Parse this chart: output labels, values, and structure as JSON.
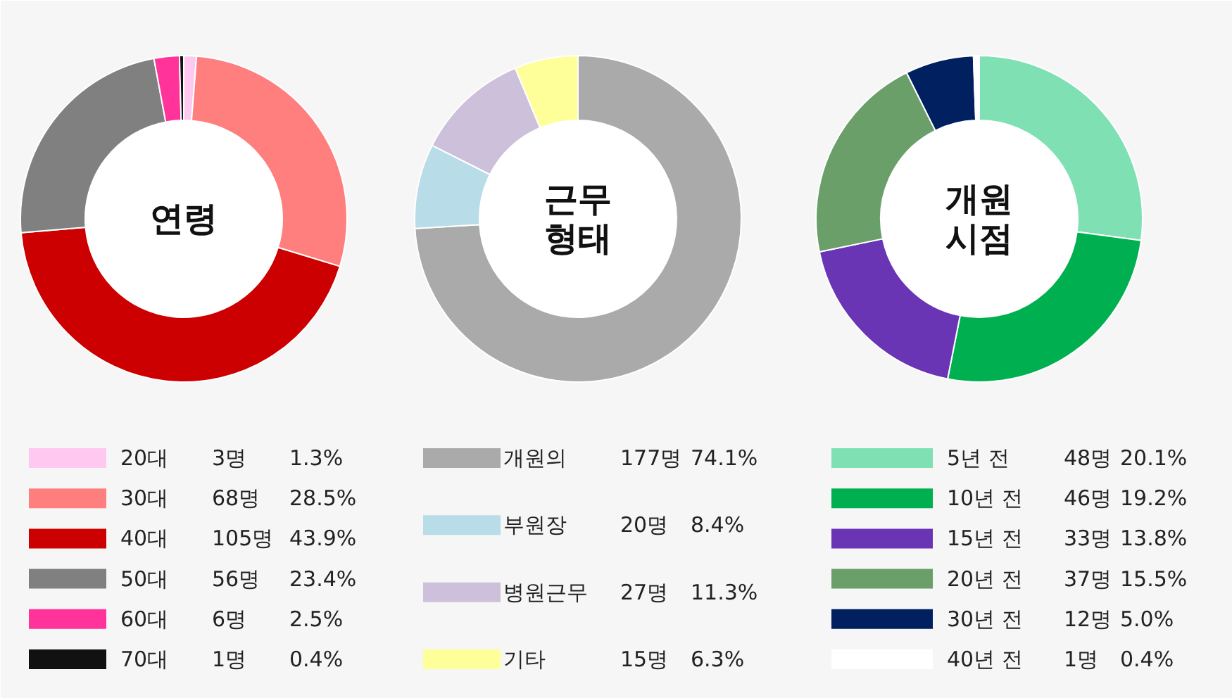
{
  "chart_data": [
    {
      "type": "donut",
      "title": "연령",
      "categories": [
        "20대",
        "30대",
        "40대",
        "50대",
        "60대",
        "70대"
      ],
      "values": [
        3,
        68,
        105,
        56,
        6,
        1
      ],
      "value_labels": [
        "3명",
        "68명",
        "105명",
        "56명",
        "6명",
        "1명"
      ],
      "annotations": [
        "1.3%",
        "28.5%",
        "43.9%",
        "23.4%",
        "2.5%",
        "0.4%"
      ],
      "colors": [
        "#ffc8f0",
        "#ff7f7f",
        "#cc0000",
        "#808080",
        "#ff3399",
        "#111111"
      ],
      "legend": "bottom"
    },
    {
      "type": "donut",
      "title": "근무 형태",
      "categories": [
        "개원의",
        "부원장",
        "병원근무",
        "기타"
      ],
      "values": [
        177,
        20,
        27,
        15
      ],
      "value_labels": [
        "177명",
        "20명",
        "27명",
        "15명"
      ],
      "annotations": [
        "74.1%",
        "8.4%",
        "11.3%",
        "6.3%"
      ],
      "colors": [
        "#aaaaaa",
        "#b8dce8",
        "#ccc0da",
        "#ffff99"
      ],
      "legend": "bottom"
    },
    {
      "type": "donut",
      "title": "개원 시점",
      "categories": [
        "5년 전",
        "10년 전",
        "15년 전",
        "20년 전",
        "30년 전",
        "40년 전"
      ],
      "values": [
        48,
        46,
        33,
        37,
        12,
        1
      ],
      "value_labels": [
        "48명",
        "46명",
        "33명",
        "37명",
        "12명",
        "1명"
      ],
      "annotations": [
        "20.1%",
        "19.2%",
        "13.8%",
        "15.5%",
        "5.0%",
        "0.4%"
      ],
      "colors": [
        "#7fe0b4",
        "#00b050",
        "#6a35b5",
        "#6a9f6a",
        "#002060",
        "#ffffff"
      ],
      "legend": "bottom"
    }
  ]
}
